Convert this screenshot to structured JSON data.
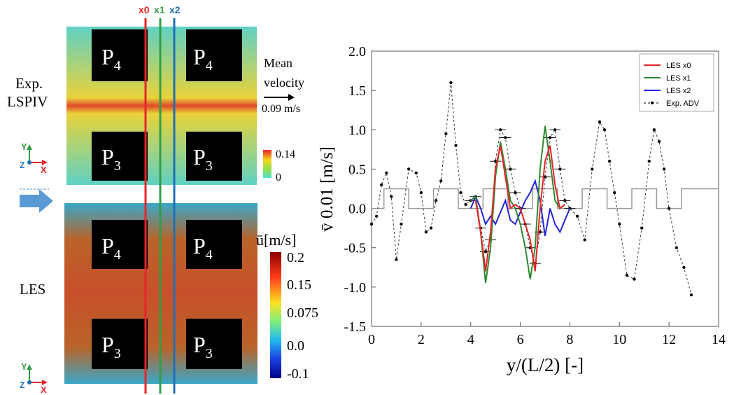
{
  "left": {
    "exp_label": [
      "Exp.",
      "LSPIV"
    ],
    "les_label": "LES",
    "probe_lines": [
      {
        "name": "x0",
        "color": "#e8232a"
      },
      {
        "name": "x1",
        "color": "#2f9e44"
      },
      {
        "name": "x2",
        "color": "#1f6fb5"
      }
    ],
    "plate_top": "P",
    "plate_top_sub": "4",
    "plate_bottom": "P",
    "plate_bottom_sub": "3",
    "mean_velocity": [
      "Mean",
      "velocity"
    ],
    "mean_velocity_value": "0.09  m/s",
    "exp_colorbar": [
      "0.14",
      "0"
    ],
    "les_colorbar_title": "[m/s]",
    "les_colorbar_symbol": "ū",
    "les_colorbar_ticks": [
      "0.2",
      "0.15",
      "0.075",
      "0.0",
      "-0.1"
    ],
    "axis_y": "Y",
    "axis_x": "X",
    "axis_z": "Z"
  },
  "chart_data": {
    "type": "line",
    "xlabel": "y/(L/2)  [-]",
    "ylabel": "v̄ 0.01  [m/s]",
    "xlim": [
      0,
      14
    ],
    "ylim": [
      -1.5,
      2.0
    ],
    "xticks": [
      "0",
      "2",
      "4",
      "6",
      "8",
      "10",
      "12",
      "14"
    ],
    "yticks": [
      "2.0",
      "1.5",
      "1.0",
      "0.5",
      "0.0",
      "-0.5",
      "-1.0",
      "-1.5"
    ],
    "legend_position": "top-right",
    "colors": {
      "x0": "#e8232a",
      "x1": "#2f8a2f",
      "x2": "#2222dd",
      "adv": "#333333",
      "geometry": "#999999"
    },
    "series": [
      {
        "name": "LES x0",
        "x": [
          4.2,
          4.4,
          4.6,
          4.8,
          5.0,
          5.2,
          5.4,
          5.6,
          5.8,
          6.0,
          6.2,
          6.4,
          6.6,
          6.8,
          7.0,
          7.2,
          7.4,
          7.6,
          7.8
        ],
        "y": [
          0.1,
          -0.3,
          -0.8,
          -0.3,
          0.5,
          0.8,
          0.4,
          0.0,
          0.05,
          0.0,
          -0.2,
          -0.4,
          -0.8,
          0.0,
          0.6,
          0.8,
          0.3,
          0.0,
          0.05
        ]
      },
      {
        "name": "LES x1",
        "x": [
          4.0,
          4.2,
          4.4,
          4.6,
          4.8,
          5.0,
          5.2,
          5.4,
          5.6,
          5.8,
          6.0,
          6.2,
          6.4,
          6.6,
          6.8,
          7.0,
          7.2,
          7.4,
          7.6,
          7.8
        ],
        "y": [
          0.1,
          0.15,
          -0.3,
          -0.95,
          -0.5,
          0.4,
          0.85,
          0.5,
          0.1,
          0.0,
          -0.2,
          -0.5,
          -0.9,
          -0.5,
          0.5,
          1.05,
          0.6,
          0.1,
          0.0,
          0.05
        ]
      },
      {
        "name": "LES x2",
        "x": [
          4.0,
          4.2,
          4.4,
          4.6,
          4.8,
          5.0,
          5.2,
          5.4,
          5.6,
          5.8,
          6.0,
          6.2,
          6.4,
          6.6,
          6.8,
          7.0,
          7.2,
          7.4,
          7.6,
          7.8,
          8.0
        ],
        "y": [
          0.0,
          0.15,
          0.0,
          -0.2,
          -0.1,
          -0.2,
          -0.05,
          0.1,
          -0.15,
          -0.2,
          -0.05,
          0.1,
          0.2,
          0.35,
          0.1,
          -0.35,
          0.0,
          -0.2,
          -0.3,
          -0.15,
          0.0
        ]
      },
      {
        "name": "Exp. ADV",
        "x": [
          0.0,
          0.2,
          0.4,
          0.6,
          0.8,
          1.0,
          1.2,
          1.5,
          1.8,
          2.0,
          2.2,
          2.4,
          2.6,
          2.8,
          3.0,
          3.2,
          3.4,
          3.6,
          3.8,
          4.0,
          4.2,
          4.4,
          4.6,
          4.8,
          5.0,
          5.2,
          5.4,
          5.6,
          5.8,
          6.0,
          6.2,
          6.4,
          6.6,
          6.8,
          7.0,
          7.2,
          7.4,
          7.6,
          7.8,
          8.0,
          8.3,
          8.6,
          8.9,
          9.2,
          9.4,
          9.6,
          9.8,
          10.0,
          10.3,
          10.6,
          10.9,
          11.2,
          11.4,
          11.6,
          11.8,
          12.0,
          12.3,
          12.6,
          12.9
        ],
        "y": [
          -0.2,
          -0.1,
          0.3,
          0.45,
          0.15,
          -0.65,
          -0.2,
          0.5,
          0.45,
          0.2,
          -0.3,
          -0.25,
          0.1,
          0.35,
          0.95,
          1.6,
          0.8,
          0.2,
          0.05,
          0.1,
          0.15,
          -0.25,
          -0.55,
          -0.4,
          0.6,
          1.0,
          0.9,
          0.5,
          0.2,
          0.0,
          -0.2,
          -0.5,
          -0.7,
          -0.3,
          0.4,
          0.9,
          1.0,
          0.5,
          0.1,
          0.0,
          -0.1,
          -0.4,
          0.5,
          1.1,
          1.0,
          0.6,
          0.2,
          -0.2,
          -0.85,
          -0.9,
          -0.25,
          0.6,
          1.0,
          0.85,
          0.5,
          0.0,
          -0.5,
          -0.75,
          -1.1
        ]
      },
      {
        "name": "",
        "x": [
          0.0,
          0.5,
          0.5,
          1.5,
          1.5,
          2.5,
          2.5,
          3.5,
          3.5,
          4.5,
          4.5,
          5.5,
          5.5,
          6.5,
          6.5,
          7.5,
          7.5,
          8.5,
          8.5,
          9.5,
          9.5,
          10.5,
          10.5,
          11.5,
          11.5,
          12.5,
          12.5,
          14.0
        ],
        "y": [
          0.0,
          0.0,
          0.25,
          0.25,
          0.0,
          0.0,
          0.25,
          0.25,
          0.0,
          0.0,
          0.25,
          0.25,
          0.0,
          0.0,
          0.25,
          0.25,
          0.0,
          0.0,
          0.25,
          0.25,
          0.0,
          0.0,
          0.25,
          0.25,
          0.0,
          0.0,
          0.25,
          0.25
        ]
      }
    ]
  }
}
